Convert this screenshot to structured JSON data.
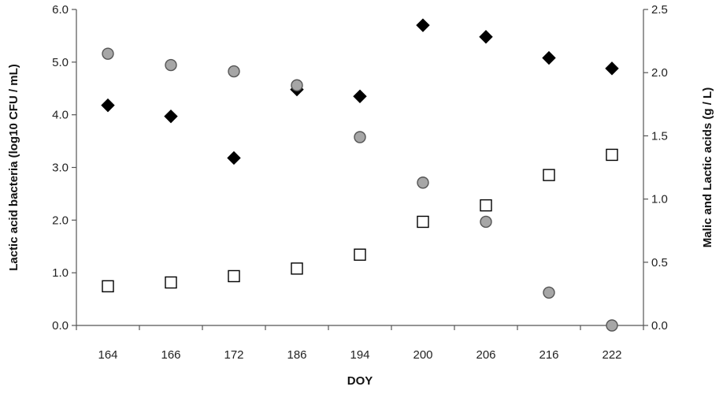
{
  "chart_data": {
    "type": "scatter",
    "title": "",
    "xlabel": "DOY",
    "ylabel": "Lactic acid bacteria (log10 CFU / mL)",
    "y2label": "Malic and Lactic acids (g / L)",
    "categories": [
      "164",
      "166",
      "172",
      "186",
      "194",
      "200",
      "206",
      "216",
      "222"
    ],
    "ylim": [
      0,
      6
    ],
    "yticks": [
      "0.0",
      "1.0",
      "2.0",
      "3.0",
      "4.0",
      "5.0",
      "6.0"
    ],
    "y2lim": [
      0,
      2.5
    ],
    "y2ticks": [
      "0.0",
      "0.5",
      "1.0",
      "1.5",
      "2.0",
      "2.5"
    ],
    "grid": false,
    "legend": "none",
    "series": [
      {
        "axis": "left",
        "marker": "diamond",
        "color": "#000000",
        "values": [
          4.18,
          3.97,
          3.18,
          4.48,
          4.35,
          5.7,
          5.48,
          5.08,
          4.88
        ]
      },
      {
        "axis": "right",
        "marker": "circle",
        "color": "#a6a6a6",
        "values": [
          2.15,
          2.06,
          2.01,
          1.9,
          1.49,
          1.13,
          0.82,
          0.26,
          0.0
        ]
      },
      {
        "axis": "right",
        "marker": "square",
        "color": "#ffffff",
        "values": [
          0.31,
          0.34,
          0.39,
          0.45,
          0.56,
          0.82,
          0.95,
          1.19,
          1.35
        ]
      }
    ]
  }
}
